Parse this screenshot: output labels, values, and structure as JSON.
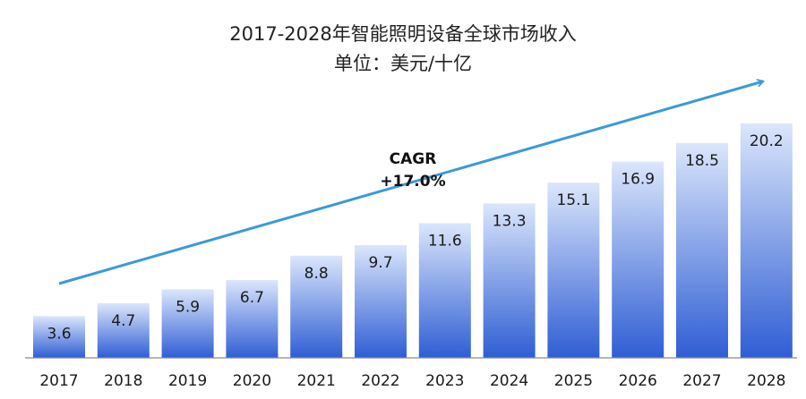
{
  "chart_data": {
    "type": "bar",
    "title": "2017-2028年智能照明设备全球市场收入",
    "subtitle": "单位：美元/十亿",
    "categories": [
      "2017",
      "2018",
      "2019",
      "2020",
      "2021",
      "2022",
      "2023",
      "2024",
      "2025",
      "2026",
      "2027",
      "2028"
    ],
    "values": [
      3.6,
      4.7,
      5.9,
      6.7,
      8.8,
      9.7,
      11.6,
      13.3,
      15.1,
      16.9,
      18.5,
      20.2
    ],
    "annotation": {
      "line1": "CAGR",
      "line2": "+17.0%"
    },
    "ylim": [
      0,
      21.5
    ],
    "grid": false,
    "colors": {
      "bar_top": "#dbe6fb",
      "bar_bottom": "#2f5ed4",
      "arrow": "#3a9ad9",
      "axis": "#8a8a8a"
    }
  }
}
